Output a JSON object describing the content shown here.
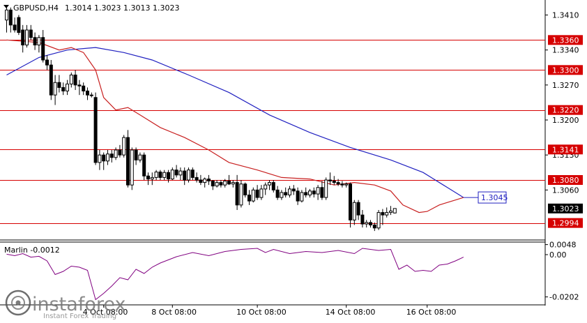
{
  "header": {
    "symbol_timeframe": "GBPUSD,H4",
    "ohlc": "1.3014 1.3023 1.3013 1.3023"
  },
  "colors": {
    "background": "#ffffff",
    "axis": "#000000",
    "candle_body": "#000000",
    "level_line": "#d60000",
    "ma_fast": "#c82020",
    "ma_slow": "#2020c0",
    "oscillator": "#800080",
    "current_price_label_bg": "#000000",
    "ma_label_border": "#2020c0"
  },
  "chart_data": [
    {
      "type": "candlestick",
      "title": "GBPUSD,H4",
      "y_ticks": [
        "1.3410",
        "1.3340",
        "1.3270",
        "1.3200",
        "1.3130",
        "1.3060"
      ],
      "ylim": [
        1.296,
        1.344
      ],
      "x_tick_labels": [
        "4 Oct 08:00",
        "8 Oct 08:00",
        "10 Oct 08:00",
        "14 Oct 08:00",
        "16 Oct 08:00"
      ],
      "x_tick_index": [
        24,
        41,
        62,
        84,
        104
      ],
      "horizontal_levels": [
        {
          "value": 1.336,
          "label": "1.3360"
        },
        {
          "value": 1.33,
          "label": "1.3300"
        },
        {
          "value": 1.322,
          "label": "1.3220"
        },
        {
          "value": 1.3141,
          "label": "1.3141"
        },
        {
          "value": 1.308,
          "label": "1.3080"
        },
        {
          "value": 1.2994,
          "label": "1.2994"
        }
      ],
      "current_price": {
        "value": 1.3023,
        "label": "1.3023"
      },
      "ma_value_label": {
        "value": 1.3045,
        "label": "1.3045"
      },
      "candles": [
        [
          1.34,
          1.3425,
          1.3375,
          1.342
        ],
        [
          1.342,
          1.3425,
          1.3375,
          1.339
        ],
        [
          1.339,
          1.3405,
          1.3375,
          1.338
        ],
        [
          1.3405,
          1.341,
          1.337,
          1.3375
        ],
        [
          1.338,
          1.339,
          1.3335,
          1.335
        ],
        [
          1.335,
          1.339,
          1.3345,
          1.338
        ],
        [
          1.338,
          1.339,
          1.336,
          1.3365
        ],
        [
          1.3365,
          1.3375,
          1.334,
          1.335
        ],
        [
          1.335,
          1.337,
          1.3335,
          1.3365
        ],
        [
          1.3365,
          1.338,
          1.3315,
          1.332
        ],
        [
          1.332,
          1.333,
          1.33,
          1.331
        ],
        [
          1.331,
          1.332,
          1.324,
          1.325
        ],
        [
          1.325,
          1.329,
          1.323,
          1.3275
        ],
        [
          1.3275,
          1.329,
          1.3255,
          1.3265
        ],
        [
          1.3265,
          1.3275,
          1.325,
          1.3258
        ],
        [
          1.3258,
          1.328,
          1.325,
          1.3272
        ],
        [
          1.3272,
          1.3295,
          1.3265,
          1.329
        ],
        [
          1.329,
          1.33,
          1.326,
          1.327
        ],
        [
          1.327,
          1.328,
          1.325,
          1.3268
        ],
        [
          1.3268,
          1.3275,
          1.325,
          1.3258
        ],
        [
          1.3258,
          1.3265,
          1.324,
          1.325
        ],
        [
          1.325,
          1.3255,
          1.3245,
          1.325
        ],
        [
          1.3245,
          1.3255,
          1.311,
          1.3115
        ],
        [
          1.3115,
          1.314,
          1.31,
          1.313
        ],
        [
          1.313,
          1.3135,
          1.31,
          1.3118
        ],
        [
          1.3118,
          1.314,
          1.311,
          1.3132
        ],
        [
          1.3132,
          1.314,
          1.3115,
          1.3125
        ],
        [
          1.3125,
          1.3145,
          1.312,
          1.314
        ],
        [
          1.314,
          1.315,
          1.3125,
          1.313
        ],
        [
          1.313,
          1.317,
          1.3125,
          1.3165
        ],
        [
          1.3165,
          1.318,
          1.3065,
          1.307
        ],
        [
          1.307,
          1.3145,
          1.306,
          1.314
        ],
        [
          1.314,
          1.3145,
          1.311,
          1.312
        ],
        [
          1.312,
          1.3135,
          1.3115,
          1.313
        ],
        [
          1.313,
          1.3135,
          1.308,
          1.3088
        ],
        [
          1.3088,
          1.3095,
          1.307,
          1.3082
        ],
        [
          1.3082,
          1.3095,
          1.307,
          1.3085
        ],
        [
          1.3085,
          1.31,
          1.308,
          1.3096
        ],
        [
          1.3096,
          1.31,
          1.308,
          1.3085
        ],
        [
          1.3085,
          1.31,
          1.308,
          1.3095
        ],
        [
          1.3095,
          1.31,
          1.3075,
          1.3082
        ],
        [
          1.3082,
          1.3105,
          1.308,
          1.31
        ],
        [
          1.31,
          1.311,
          1.3085,
          1.309
        ],
        [
          1.309,
          1.3105,
          1.308,
          1.3098
        ],
        [
          1.3098,
          1.3105,
          1.307,
          1.308
        ],
        [
          1.308,
          1.3105,
          1.3075,
          1.31
        ],
        [
          1.31,
          1.3105,
          1.308,
          1.3085
        ],
        [
          1.3085,
          1.3095,
          1.3075,
          1.308
        ],
        [
          1.308,
          1.309,
          1.307,
          1.3075
        ],
        [
          1.3075,
          1.3085,
          1.3065,
          1.3082
        ],
        [
          1.3082,
          1.309,
          1.307,
          1.3078
        ],
        [
          1.3078,
          1.308,
          1.306,
          1.3068
        ],
        [
          1.3068,
          1.308,
          1.3065,
          1.3075
        ],
        [
          1.3075,
          1.308,
          1.3065,
          1.307
        ],
        [
          1.307,
          1.3082,
          1.3065,
          1.3078
        ],
        [
          1.3078,
          1.309,
          1.307,
          1.3072
        ],
        [
          1.3072,
          1.308,
          1.3065,
          1.3075
        ],
        [
          1.3075,
          1.309,
          1.302,
          1.303
        ],
        [
          1.303,
          1.308,
          1.3025,
          1.3072
        ],
        [
          1.3072,
          1.3075,
          1.3045,
          1.305
        ],
        [
          1.305,
          1.306,
          1.303,
          1.3038
        ],
        [
          1.3038,
          1.3065,
          1.3035,
          1.306
        ],
        [
          1.306,
          1.307,
          1.304,
          1.3045
        ],
        [
          1.3045,
          1.307,
          1.304,
          1.3062
        ],
        [
          1.3062,
          1.3075,
          1.305,
          1.307
        ],
        [
          1.307,
          1.308,
          1.306,
          1.3075
        ],
        [
          1.3075,
          1.308,
          1.3055,
          1.306
        ],
        [
          1.306,
          1.3068,
          1.304,
          1.3045
        ],
        [
          1.3045,
          1.306,
          1.304,
          1.3055
        ],
        [
          1.3055,
          1.3065,
          1.3045,
          1.305
        ],
        [
          1.305,
          1.3068,
          1.3045,
          1.3062
        ],
        [
          1.3062,
          1.307,
          1.305,
          1.3058
        ],
        [
          1.3058,
          1.3065,
          1.303,
          1.3038
        ],
        [
          1.3038,
          1.306,
          1.3035,
          1.3055
        ],
        [
          1.3055,
          1.3065,
          1.3045,
          1.305
        ],
        [
          1.305,
          1.3062,
          1.3045,
          1.3058
        ],
        [
          1.3058,
          1.3065,
          1.3045,
          1.3052
        ],
        [
          1.3052,
          1.307,
          1.304,
          1.3065
        ],
        [
          1.3065,
          1.3078,
          1.304,
          1.3045
        ],
        [
          1.3045,
          1.3085,
          1.304,
          1.308
        ],
        [
          1.308,
          1.3095,
          1.307,
          1.3078
        ],
        [
          1.3078,
          1.3088,
          1.307,
          1.3075
        ],
        [
          1.3075,
          1.3082,
          1.3068,
          1.3072
        ],
        [
          1.3072,
          1.3078,
          1.3065,
          1.307
        ],
        [
          1.307,
          1.3075,
          1.3065,
          1.3072
        ],
        [
          1.3072,
          1.3075,
          1.2985,
          1.3
        ],
        [
          1.3,
          1.304,
          1.299,
          1.3035
        ],
        [
          1.3035,
          1.304,
          1.3,
          1.301
        ],
        [
          1.301,
          1.302,
          1.2985,
          1.2992
        ],
        [
          1.2992,
          1.3,
          1.2985,
          1.2995
        ],
        [
          1.2995,
          1.3,
          1.2985,
          1.299
        ],
        [
          1.299,
          1.2995,
          1.2978,
          1.2984
        ],
        [
          1.2984,
          1.302,
          1.298,
          1.3015
        ],
        [
          1.3015,
          1.3022,
          1.299,
          1.301
        ],
        [
          1.301,
          1.3025,
          1.3005,
          1.3015
        ],
        [
          1.3015,
          1.3028,
          1.301,
          1.3018
        ],
        [
          1.3014,
          1.3023,
          1.3013,
          1.3023
        ]
      ],
      "ma_fast": [
        [
          0,
          1.336
        ],
        [
          8,
          1.3355
        ],
        [
          13,
          1.334
        ],
        [
          16,
          1.3345
        ],
        [
          19,
          1.3335
        ],
        [
          22,
          1.33
        ],
        [
          24,
          1.3245
        ],
        [
          27,
          1.322
        ],
        [
          30,
          1.3225
        ],
        [
          33,
          1.321
        ],
        [
          38,
          1.3185
        ],
        [
          44,
          1.3165
        ],
        [
          50,
          1.314
        ],
        [
          55,
          1.3115
        ],
        [
          62,
          1.31
        ],
        [
          68,
          1.3085
        ],
        [
          75,
          1.3082
        ],
        [
          81,
          1.307
        ],
        [
          86,
          1.3075
        ],
        [
          91,
          1.307
        ],
        [
          95,
          1.3058
        ],
        [
          98,
          1.303
        ],
        [
          102,
          1.3015
        ],
        [
          104,
          1.3017
        ],
        [
          107,
          1.303
        ],
        [
          111,
          1.304
        ],
        [
          113,
          1.3045
        ]
      ],
      "ma_slow": [
        [
          0,
          1.329
        ],
        [
          8,
          1.3325
        ],
        [
          15,
          1.334
        ],
        [
          22,
          1.3345
        ],
        [
          29,
          1.3335
        ],
        [
          36,
          1.332
        ],
        [
          45,
          1.329
        ],
        [
          55,
          1.3255
        ],
        [
          65,
          1.321
        ],
        [
          75,
          1.3175
        ],
        [
          85,
          1.3145
        ],
        [
          95,
          1.312
        ],
        [
          103,
          1.3095
        ],
        [
          109,
          1.3065
        ],
        [
          113,
          1.3045
        ]
      ]
    },
    {
      "type": "line",
      "title": "Marlin -0.0012",
      "y_ticks": [
        "0.0048",
        "0.00",
        "-0.0202"
      ],
      "ylim": [
        -0.024,
        0.006
      ],
      "series": [
        {
          "values": [
            [
              0,
              0.0002
            ],
            [
              2,
              -0.0005
            ],
            [
              4,
              0.0005
            ],
            [
              6,
              -0.0012
            ],
            [
              8,
              -0.0008
            ],
            [
              10,
              -0.003
            ],
            [
              12,
              -0.0095
            ],
            [
              14,
              -0.008
            ],
            [
              16,
              -0.0055
            ],
            [
              18,
              -0.006
            ],
            [
              20,
              -0.0075
            ],
            [
              22,
              -0.0215
            ],
            [
              24,
              -0.0185
            ],
            [
              26,
              -0.015
            ],
            [
              28,
              -0.011
            ],
            [
              30,
              -0.012
            ],
            [
              32,
              -0.007
            ],
            [
              34,
              -0.009
            ],
            [
              36,
              -0.006
            ],
            [
              38,
              -0.004
            ],
            [
              42,
              -0.001
            ],
            [
              46,
              0.001
            ],
            [
              50,
              -0.0005
            ],
            [
              54,
              0.0015
            ],
            [
              58,
              0.0025
            ],
            [
              62,
              0.003
            ],
            [
              64,
              0.001
            ],
            [
              66,
              0.0025
            ],
            [
              70,
              0.0005
            ],
            [
              74,
              0.0015
            ],
            [
              78,
              0.001
            ],
            [
              82,
              0.002
            ],
            [
              86,
              0.0005
            ],
            [
              88,
              0.003
            ],
            [
              92,
              0.002
            ],
            [
              95,
              0.0025
            ],
            [
              97,
              -0.007
            ],
            [
              99,
              -0.005
            ],
            [
              101,
              -0.008
            ],
            [
              103,
              -0.0075
            ],
            [
              105,
              -0.008
            ],
            [
              107,
              -0.005
            ],
            [
              109,
              -0.0045
            ],
            [
              111,
              -0.003
            ],
            [
              113,
              -0.0012
            ]
          ]
        }
      ]
    }
  ],
  "watermark": {
    "brand": "instaforex",
    "tagline": "Instant Forex Trading"
  }
}
